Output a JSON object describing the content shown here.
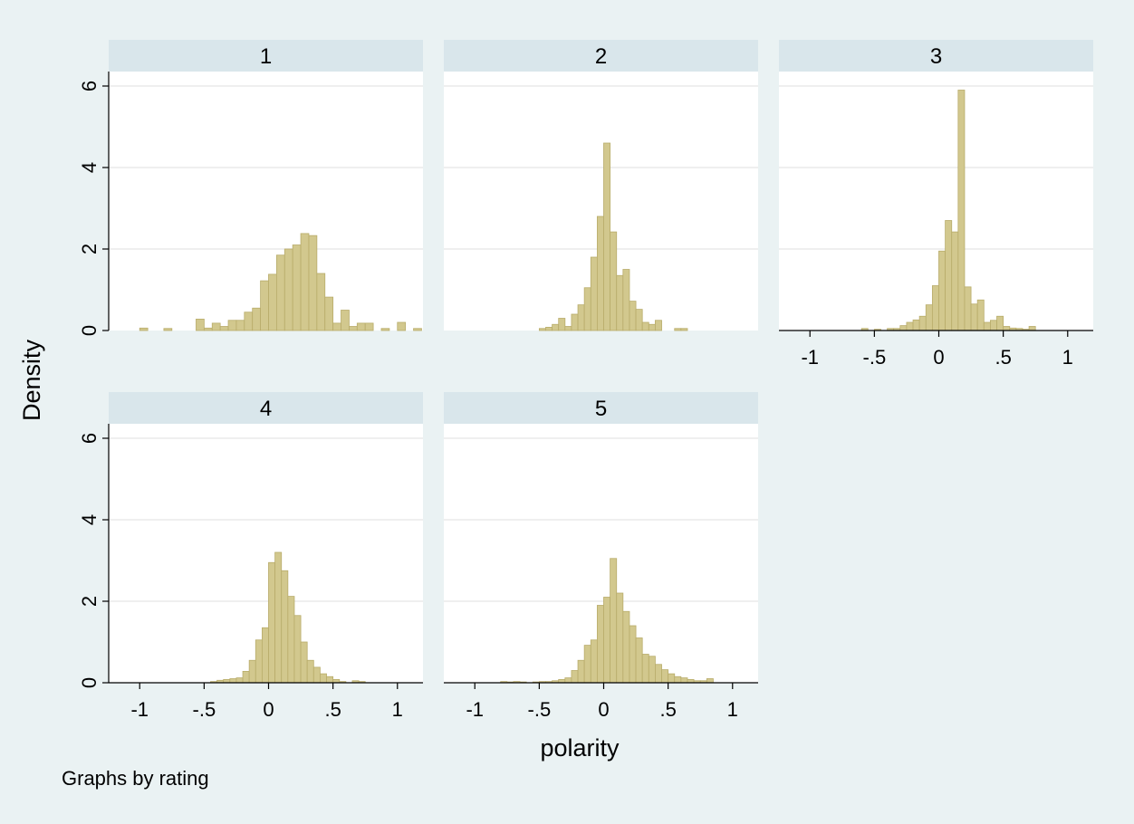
{
  "chart_data": {
    "type": "bar",
    "by_label": "Graphs by rating",
    "xlabel": "polarity",
    "ylabel": "Density",
    "xlim": [
      -1.1,
      1.1
    ],
    "ylim": [
      0,
      6.3
    ],
    "xticks": [
      {
        "value": -1,
        "label": "-1"
      },
      {
        "value": -0.5,
        "label": "-.5"
      },
      {
        "value": 0,
        "label": "0"
      },
      {
        "value": 0.5,
        "label": ".5"
      },
      {
        "value": 1,
        "label": "1"
      }
    ],
    "yticks": [
      {
        "value": 0,
        "label": "0"
      },
      {
        "value": 2,
        "label": "2"
      },
      {
        "value": 4,
        "label": "4"
      },
      {
        "value": 6,
        "label": "6"
      }
    ],
    "grid": true,
    "bar_color": "#d2c88e",
    "bar_edge_color": "#b8ac6a",
    "strip_color": "#d9e6eb",
    "panels": [
      {
        "title": "1",
        "bin_width": 0.0625,
        "bin_start": -1.0,
        "values": [
          0.06,
          0,
          0,
          0.05,
          0,
          0,
          0,
          0.28,
          0.06,
          0.18,
          0.1,
          0.25,
          0.25,
          0.45,
          0.55,
          1.22,
          1.38,
          1.85,
          2.0,
          2.1,
          2.38,
          2.33,
          1.4,
          0.82,
          0.18,
          0.5,
          0.1,
          0.18,
          0.18,
          0,
          0.05,
          0,
          0.2,
          0,
          0.05,
          0,
          0,
          0,
          0,
          0,
          0
        ]
      },
      {
        "title": "2",
        "bin_width": 0.05,
        "bin_start": -0.5,
        "values": [
          0.05,
          0.08,
          0.15,
          0.3,
          0.1,
          0.4,
          0.63,
          1.05,
          1.8,
          2.8,
          4.6,
          2.42,
          1.35,
          1.5,
          0.72,
          0.52,
          0.2,
          0.15,
          0.25,
          0,
          0,
          0.05,
          0.05,
          0,
          0,
          0,
          0,
          0,
          0,
          0
        ]
      },
      {
        "title": "3",
        "bin_width": 0.05,
        "bin_start": -0.6,
        "values": [
          0.05,
          0,
          0.03,
          0,
          0.05,
          0.05,
          0.12,
          0.2,
          0.26,
          0.35,
          0.63,
          1.1,
          1.95,
          2.7,
          2.42,
          5.9,
          1.07,
          0.65,
          0.75,
          0.2,
          0.25,
          0.35,
          0.1,
          0.06,
          0.05,
          0.03,
          0.1,
          0,
          0,
          0
        ]
      },
      {
        "title": "4",
        "bin_width": 0.05,
        "bin_start": -0.45,
        "values": [
          0.03,
          0.06,
          0.08,
          0.1,
          0.12,
          0.28,
          0.55,
          1.05,
          1.35,
          2.95,
          3.2,
          2.75,
          2.12,
          1.65,
          1.0,
          0.55,
          0.38,
          0.22,
          0.15,
          0.08,
          0.03,
          0,
          0.05,
          0.03,
          0
        ]
      },
      {
        "title": "5",
        "bin_width": 0.05,
        "bin_start": -0.8,
        "values": [
          0.03,
          0.02,
          0.03,
          0.02,
          0,
          0.02,
          0.03,
          0.03,
          0.05,
          0.08,
          0.12,
          0.3,
          0.55,
          0.92,
          1.05,
          1.9,
          2.1,
          3.05,
          2.2,
          1.75,
          1.4,
          1.1,
          0.7,
          0.65,
          0.45,
          0.32,
          0.22,
          0.15,
          0.12,
          0.08,
          0.05,
          0.05,
          0.1
        ]
      }
    ]
  }
}
